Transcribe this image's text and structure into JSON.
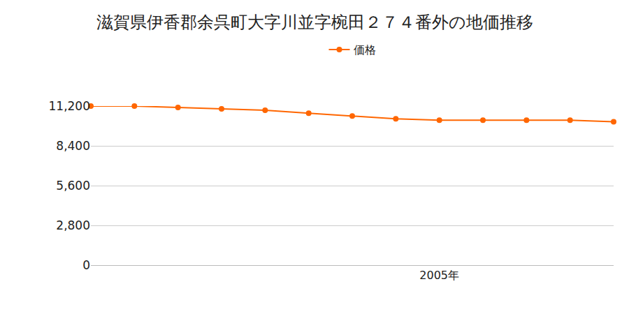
{
  "chart_data": {
    "type": "line",
    "title": "滋賀県伊香郡余呉町大字川並字椀田２７４番外の地価推移",
    "categories": [
      null,
      null,
      null,
      null,
      null,
      null,
      null,
      null,
      "2005年",
      null,
      null,
      null,
      null
    ],
    "series": [
      {
        "name": "価格",
        "color": "#ff6600",
        "marker": "circle",
        "values": [
          11200,
          11200,
          11100,
          11000,
          10900,
          10700,
          10500,
          10300,
          10200,
          10200,
          10200,
          10200,
          10100
        ]
      }
    ],
    "ylim": [
      0,
      11200
    ],
    "yticks": [
      0,
      {
        "value": 2800,
        "label": "2,800"
      },
      {
        "value": 5600,
        "label": "5,600"
      },
      {
        "value": 8400,
        "label": "8,400"
      },
      {
        "value": 11200,
        "label": "11,200"
      }
    ],
    "grid": true,
    "legend": "top"
  }
}
